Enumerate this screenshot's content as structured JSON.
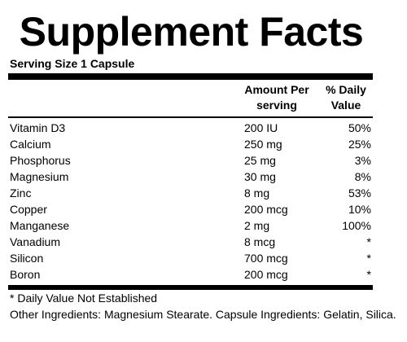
{
  "title": "Supplement Facts",
  "serving_size": "Serving Size 1 Capsule",
  "table": {
    "header": [
      "Amount Per serving",
      "% Daily Value"
    ],
    "rows": [
      [
        "Vitamin D3",
        "200 IU",
        "50%"
      ],
      [
        "Calcium",
        "250 mg",
        "25%"
      ],
      [
        "Phosphorus",
        "25 mg",
        "3%"
      ],
      [
        "Magnesium",
        "30 mg",
        "8%"
      ],
      [
        "Zinc",
        "8 mg",
        "53%"
      ],
      [
        "Copper",
        "200 mcg",
        "10%"
      ],
      [
        "Manganese",
        "2 mg",
        "100%"
      ],
      [
        "Vanadium",
        "8 mcg",
        "*"
      ],
      [
        "Silicon",
        "700 mcg",
        "*"
      ],
      [
        "Boron",
        "200 mcg",
        "*"
      ]
    ]
  },
  "footnote": "* Daily Value Not Established",
  "other_ingredients": "Other Ingredients: Magnesium Stearate. Capsule Ingredients: Gelatin, Silica."
}
